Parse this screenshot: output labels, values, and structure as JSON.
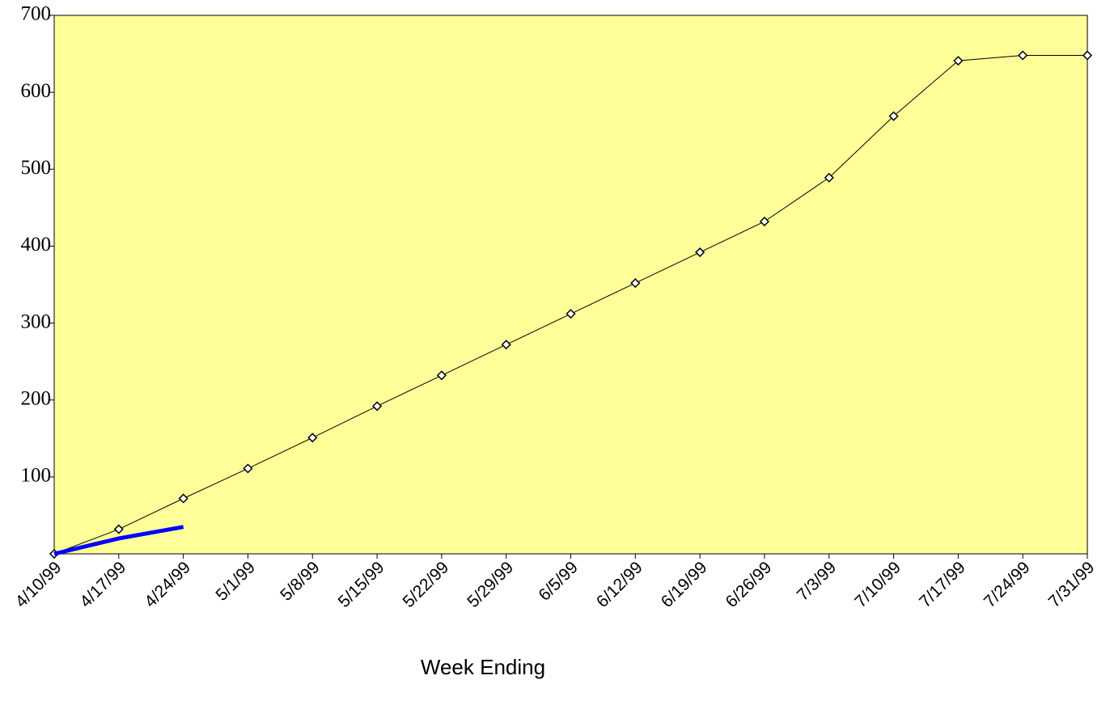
{
  "chart_data": {
    "type": "line",
    "categories": [
      "4/10/99",
      "4/17/99",
      "4/24/99",
      "5/1/99",
      "5/8/99",
      "5/15/99",
      "5/22/99",
      "5/29/99",
      "6/5/99",
      "6/12/99",
      "6/19/99",
      "6/26/99",
      "7/3/99",
      "7/10/99",
      "7/17/99",
      "7/24/99",
      "7/31/99"
    ],
    "series": [
      {
        "color": "#000000",
        "marker": "diamond",
        "values": [
          0,
          32,
          72,
          111,
          151,
          192,
          232,
          272,
          312,
          352,
          392,
          432,
          489,
          569,
          641,
          648,
          648
        ]
      },
      {
        "color": "#0000ff",
        "values": [
          0,
          20,
          35,
          null,
          null,
          null,
          null,
          null,
          null,
          null,
          null,
          null,
          null,
          null,
          null,
          null,
          null
        ]
      }
    ],
    "ylim": [
      0,
      700
    ],
    "yticks": [
      100,
      200,
      300,
      400,
      500,
      600,
      700
    ],
    "xlabel": "Week Ending",
    "background": "#ffff99"
  }
}
